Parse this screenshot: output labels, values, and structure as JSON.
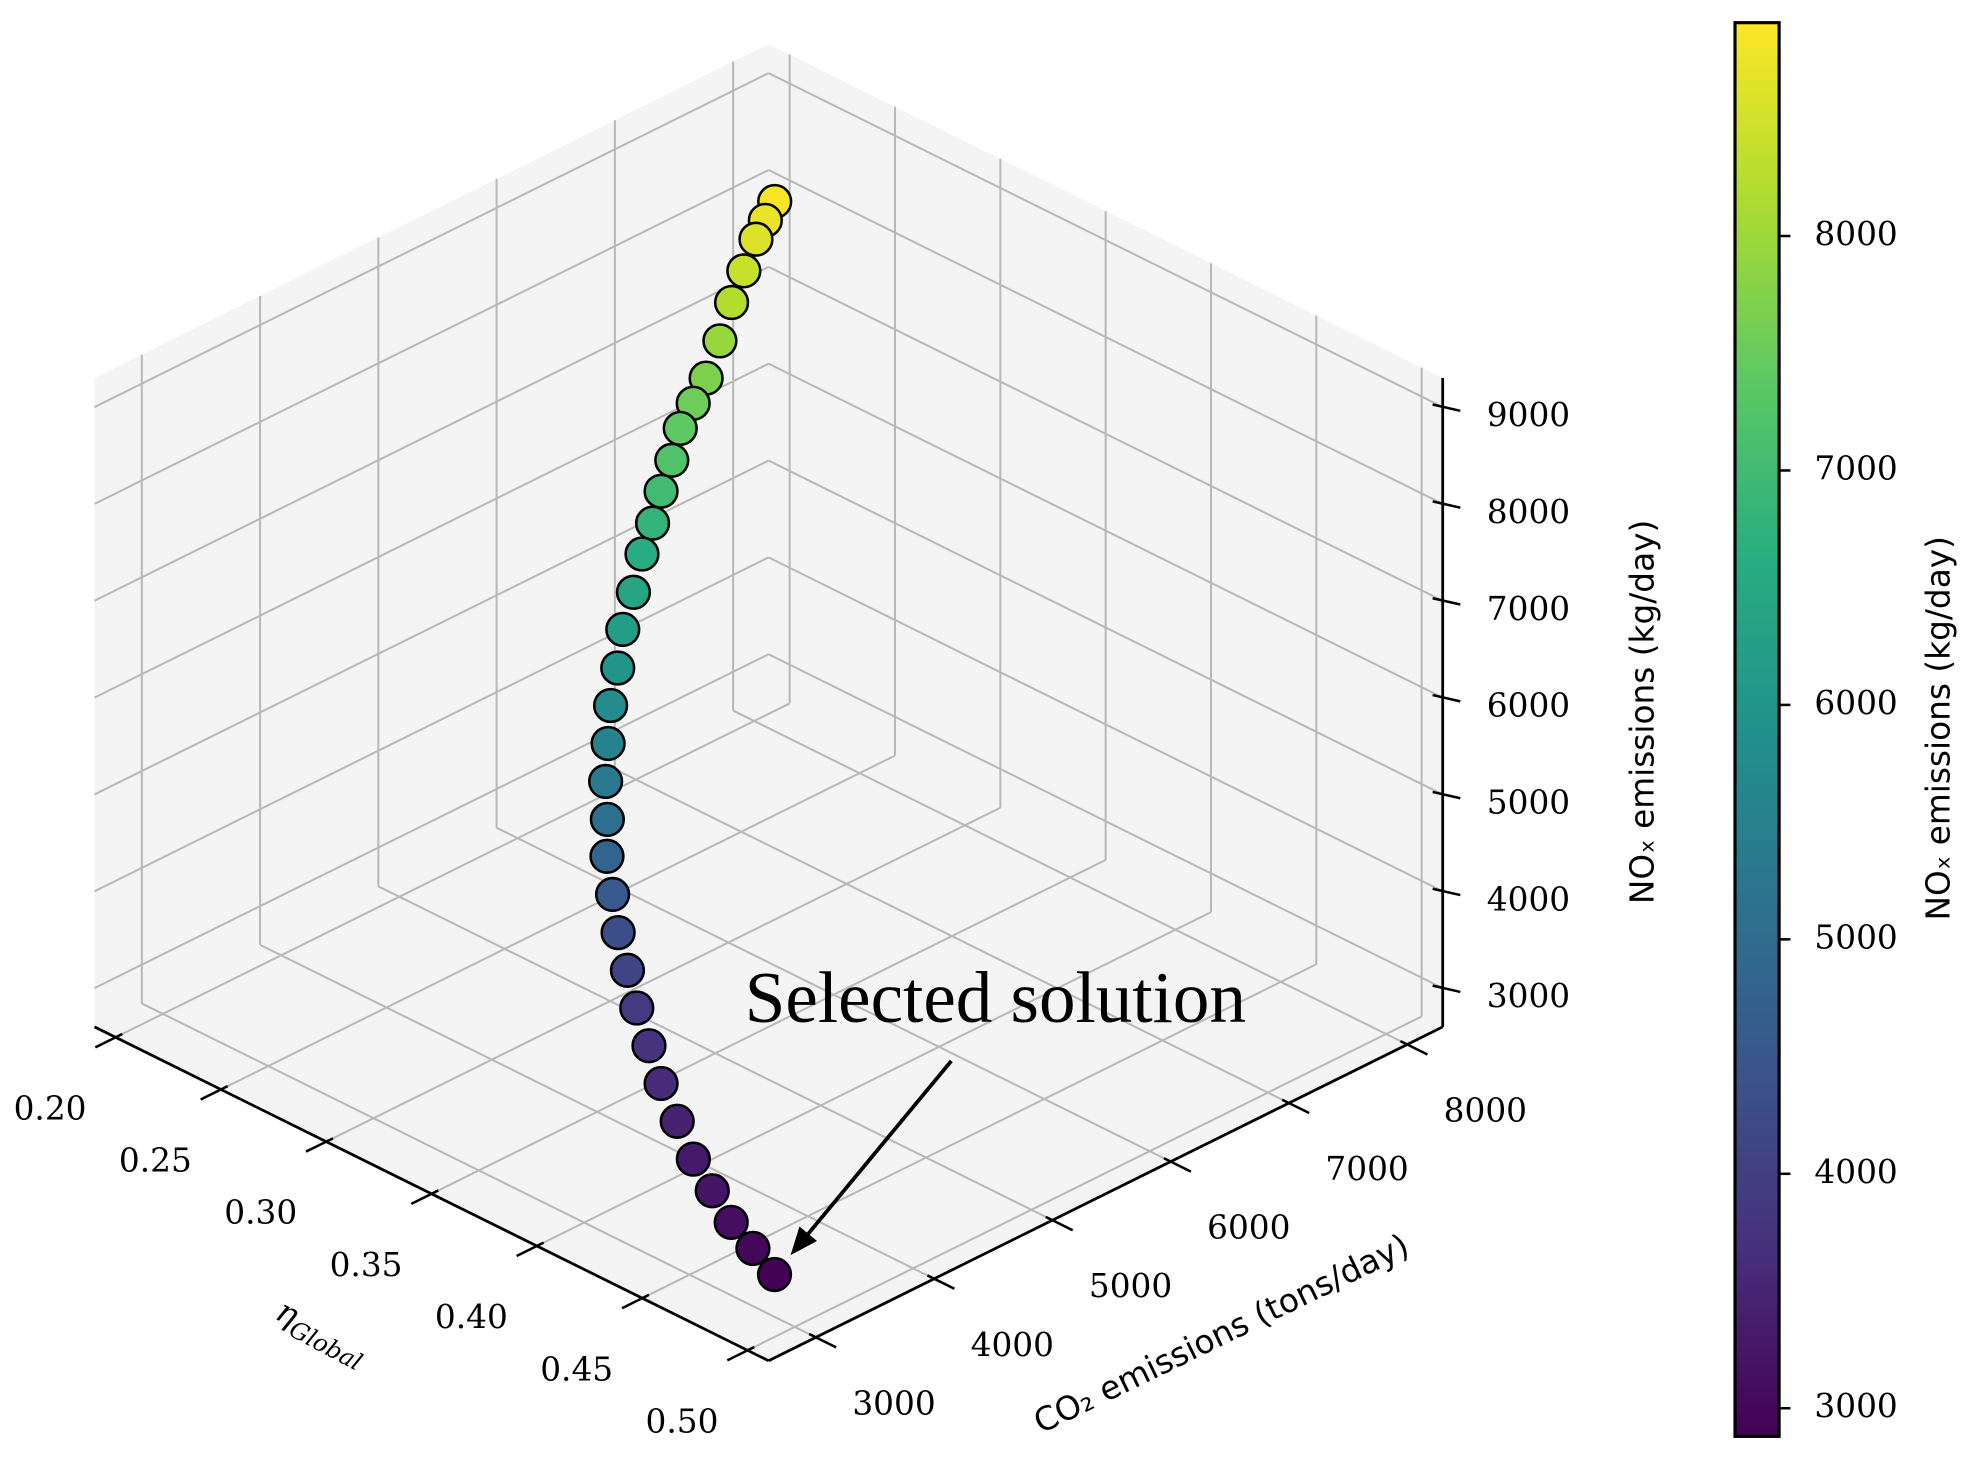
{
  "chart_data": {
    "type": "scatter3d",
    "x_label": {
      "symbol": "η",
      "subscript": "Global"
    },
    "y_label": "CO₂ emissions (tons/day)",
    "z_label": "NOₓ emissions (kg/day)",
    "colorbar_label": "NOₓ emissions (kg/day)",
    "annotation": "Selected solution",
    "colormap": "viridis",
    "edgecolor": "#000000",
    "grid": true,
    "x": [
      0.246,
      0.247,
      0.248,
      0.251,
      0.254,
      0.258,
      0.261,
      0.263,
      0.265,
      0.269,
      0.272,
      0.276,
      0.279,
      0.286,
      0.292,
      0.3,
      0.307,
      0.313,
      0.319,
      0.326,
      0.332,
      0.34,
      0.348,
      0.359,
      0.37,
      0.384,
      0.398,
      0.413,
      0.428,
      0.443,
      0.458,
      0.471,
      0.484
    ],
    "y": [
      7354,
      7257,
      7160,
      7004,
      6847,
      6677,
      6507,
      6362,
      6217,
      6074,
      5930,
      5787,
      5644,
      5447,
      5250,
      5065,
      4880,
      4752,
      4624,
      4514,
      4404,
      4309,
      4213,
      4096,
      3979,
      3833,
      3686,
      3555,
      3424,
      3317,
      3210,
      3162,
      3113
    ],
    "z": [
      8850,
      8725,
      8600,
      8400,
      8200,
      7950,
      7700,
      7550,
      7400,
      7200,
      7000,
      6800,
      6600,
      6400,
      6200,
      6000,
      5800,
      5550,
      5300,
      5050,
      4800,
      4550,
      4300,
      4100,
      3900,
      3750,
      3600,
      3450,
      3300,
      3200,
      3100,
      3000,
      2900
    ],
    "xlim": [
      0.19,
      0.51
    ],
    "ylim": [
      2600,
      8300
    ],
    "zlim": [
      2600,
      9300
    ],
    "xticks": [
      {
        "value": 0.2,
        "label": "0.20"
      },
      0.25,
      {
        "value": 0.3,
        "label": "0.30"
      },
      0.35,
      {
        "value": 0.4,
        "label": "0.40"
      },
      0.45,
      {
        "value": 0.5,
        "label": "0.50"
      }
    ],
    "yticks": [
      3000,
      4000,
      5000,
      6000,
      7000,
      8000
    ],
    "zticks": [
      3000,
      4000,
      5000,
      6000,
      7000,
      8000,
      9000
    ],
    "clim": [
      2880,
      8910
    ],
    "cticks": [
      3000,
      4000,
      5000,
      6000,
      7000,
      8000
    ]
  }
}
